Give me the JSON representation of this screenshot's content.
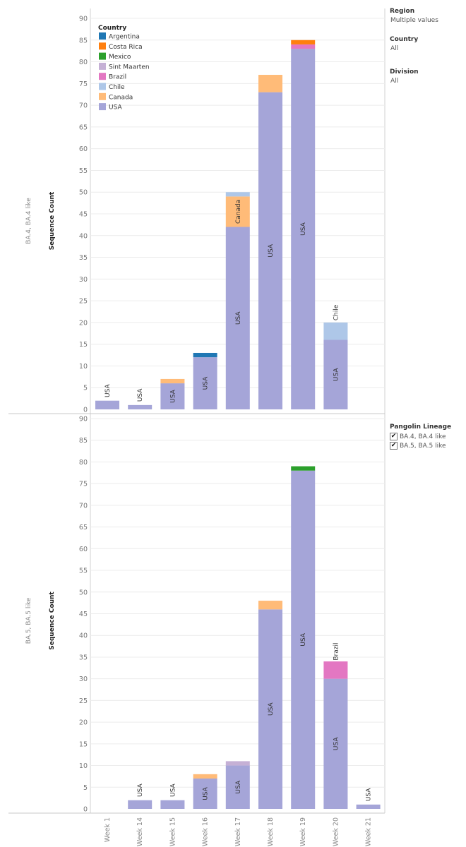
{
  "filters": {
    "region": {
      "label": "Region",
      "value": "Multiple values"
    },
    "country": {
      "label": "Country",
      "value": "All"
    },
    "division": {
      "label": "Division",
      "value": "All"
    },
    "pangolin": {
      "label": "Pangolin Lineage",
      "items": [
        {
          "label": "BA.4, BA.4 like",
          "checked": true
        },
        {
          "label": "BA.5, BA.5 like",
          "checked": true
        }
      ]
    }
  },
  "legend": {
    "title": "Country",
    "items": [
      {
        "name": "Argentina",
        "color": "#1f77b4"
      },
      {
        "name": "Costa Rica",
        "color": "#ff7f0e"
      },
      {
        "name": "Mexico",
        "color": "#2ca02c"
      },
      {
        "name": "Sint Maarten",
        "color": "#c5b0d5"
      },
      {
        "name": "Brazil",
        "color": "#e377c2"
      },
      {
        "name": "Chile",
        "color": "#aec7e8"
      },
      {
        "name": "Canada",
        "color": "#ffbb78"
      },
      {
        "name": "USA",
        "color": "#a5a5d8"
      }
    ]
  },
  "chart_data": {
    "type": "bar",
    "stacked": true,
    "categories": [
      "Week 1",
      "Week 14",
      "Week 15",
      "Week 16",
      "Week 17",
      "Week 18",
      "Week 19",
      "Week 20",
      "Week 21"
    ],
    "ylabel": "Sequence Count",
    "ylim": [
      0,
      90
    ],
    "yticks": [
      0,
      5,
      10,
      15,
      20,
      25,
      30,
      35,
      40,
      45,
      50,
      55,
      60,
      65,
      70,
      75,
      80,
      85,
      90
    ],
    "grid": true,
    "legend_position": "top-left",
    "panels": [
      {
        "row_label": "BA.4, BA.4 like",
        "series": [
          {
            "name": "USA",
            "values": [
              2,
              1,
              6,
              12,
              42,
              73,
              83,
              16,
              0
            ]
          },
          {
            "name": "Canada",
            "values": [
              0,
              0,
              1,
              0,
              7,
              4,
              0,
              0,
              0
            ]
          },
          {
            "name": "Chile",
            "values": [
              0,
              0,
              0,
              0,
              1,
              0,
              0,
              4,
              0
            ]
          },
          {
            "name": "Brazil",
            "values": [
              0,
              0,
              0,
              0,
              0,
              0,
              1,
              0,
              0
            ]
          },
          {
            "name": "Sint Maarten",
            "values": [
              0,
              0,
              0,
              0,
              0,
              0,
              0,
              0,
              0
            ]
          },
          {
            "name": "Mexico",
            "values": [
              0,
              0,
              0,
              0,
              0,
              0,
              0,
              0,
              0
            ]
          },
          {
            "name": "Costa Rica",
            "values": [
              0,
              0,
              0,
              0,
              0,
              0,
              1,
              0,
              0
            ]
          },
          {
            "name": "Argentina",
            "values": [
              0,
              0,
              0,
              1,
              0,
              0,
              0,
              0,
              0
            ]
          }
        ],
        "segment_labels": [
          {
            "category": "Week 1",
            "series": "USA",
            "text": "USA"
          },
          {
            "category": "Week 14",
            "series": "USA",
            "text": "USA"
          },
          {
            "category": "Week 15",
            "series": "USA",
            "text": "USA"
          },
          {
            "category": "Week 16",
            "series": "USA",
            "text": "USA"
          },
          {
            "category": "Week 17",
            "series": "USA",
            "text": "USA"
          },
          {
            "category": "Week 17",
            "series": "Canada",
            "text": "Canada"
          },
          {
            "category": "Week 18",
            "series": "USA",
            "text": "USA"
          },
          {
            "category": "Week 19",
            "series": "USA",
            "text": "USA"
          },
          {
            "category": "Week 20",
            "series": "USA",
            "text": "USA"
          },
          {
            "category": "Week 20",
            "series": "Chile",
            "text": "Chile"
          }
        ]
      },
      {
        "row_label": "BA.5, BA.5 like",
        "series": [
          {
            "name": "USA",
            "values": [
              0,
              2,
              2,
              7,
              10,
              46,
              78,
              30,
              1
            ]
          },
          {
            "name": "Canada",
            "values": [
              0,
              0,
              0,
              1,
              0,
              2,
              0,
              0,
              0
            ]
          },
          {
            "name": "Chile",
            "values": [
              0,
              0,
              0,
              0,
              0,
              0,
              0,
              0,
              0
            ]
          },
          {
            "name": "Brazil",
            "values": [
              0,
              0,
              0,
              0,
              0,
              0,
              0,
              4,
              0
            ]
          },
          {
            "name": "Sint Maarten",
            "values": [
              0,
              0,
              0,
              0,
              1,
              0,
              0,
              0,
              0
            ]
          },
          {
            "name": "Mexico",
            "values": [
              0,
              0,
              0,
              0,
              0,
              0,
              1,
              0,
              0
            ]
          },
          {
            "name": "Costa Rica",
            "values": [
              0,
              0,
              0,
              0,
              0,
              0,
              0,
              0,
              0
            ]
          },
          {
            "name": "Argentina",
            "values": [
              0,
              0,
              0,
              0,
              0,
              0,
              0,
              0,
              0
            ]
          }
        ],
        "segment_labels": [
          {
            "category": "Week 14",
            "series": "USA",
            "text": "USA"
          },
          {
            "category": "Week 15",
            "series": "USA",
            "text": "USA"
          },
          {
            "category": "Week 16",
            "series": "USA",
            "text": "USA"
          },
          {
            "category": "Week 17",
            "series": "USA",
            "text": "USA"
          },
          {
            "category": "Week 18",
            "series": "USA",
            "text": "USA"
          },
          {
            "category": "Week 19",
            "series": "USA",
            "text": "USA"
          },
          {
            "category": "Week 20",
            "series": "USA",
            "text": "USA"
          },
          {
            "category": "Week 20",
            "series": "Brazil",
            "text": "Brazil"
          },
          {
            "category": "Week 21",
            "series": "USA",
            "text": "USA"
          }
        ]
      }
    ]
  }
}
